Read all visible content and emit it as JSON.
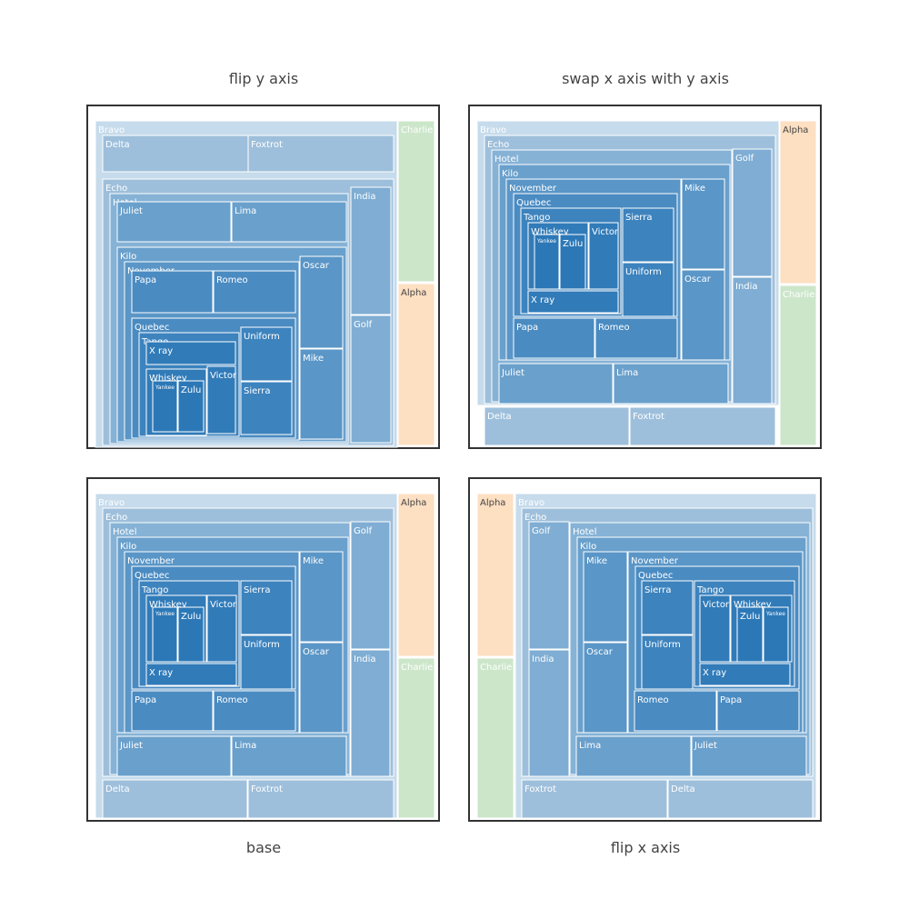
{
  "chart_data": [
    {
      "type": "treemap",
      "title": "flip y axis",
      "orientation": "flip-y",
      "tiling": "bottom-up",
      "nodes": [
        {
          "label": "Bravo",
          "parent": ""
        },
        {
          "label": "Delta",
          "parent": "Bravo"
        },
        {
          "label": "Foxtrot",
          "parent": "Bravo"
        },
        {
          "label": "Echo",
          "parent": "Bravo"
        },
        {
          "label": "Hotel",
          "parent": "Echo"
        },
        {
          "label": "India",
          "parent": "Echo"
        },
        {
          "label": "Golf",
          "parent": "Echo"
        },
        {
          "label": "Juliet",
          "parent": "Hotel"
        },
        {
          "label": "Lima",
          "parent": "Hotel"
        },
        {
          "label": "Kilo",
          "parent": "Hotel"
        },
        {
          "label": "November",
          "parent": "Kilo"
        },
        {
          "label": "Oscar",
          "parent": "Kilo"
        },
        {
          "label": "Mike",
          "parent": "Kilo"
        },
        {
          "label": "Papa",
          "parent": "November"
        },
        {
          "label": "Romeo",
          "parent": "November"
        },
        {
          "label": "Quebec",
          "parent": "November"
        },
        {
          "label": "Tango",
          "parent": "Quebec"
        },
        {
          "label": "Uniform",
          "parent": "Quebec"
        },
        {
          "label": "Sierra",
          "parent": "Quebec"
        },
        {
          "label": "X ray",
          "parent": "Tango"
        },
        {
          "label": "Whiskey",
          "parent": "Tango"
        },
        {
          "label": "Victor",
          "parent": "Tango"
        },
        {
          "label": "Yankee",
          "parent": "Whiskey"
        },
        {
          "label": "Zulu",
          "parent": "Whiskey"
        },
        {
          "label": "Charlie",
          "parent": ""
        },
        {
          "label": "Alpha",
          "parent": ""
        }
      ]
    },
    {
      "type": "treemap",
      "title": "swap x axis with y axis",
      "orientation": "swap-xy",
      "tiling": "transposed",
      "nodes": [
        {
          "label": "Bravo",
          "parent": ""
        },
        {
          "label": "Echo",
          "parent": "Bravo"
        },
        {
          "label": "Hotel",
          "parent": "Echo"
        },
        {
          "label": "Golf",
          "parent": "Echo"
        },
        {
          "label": "India",
          "parent": "Echo"
        },
        {
          "label": "Kilo",
          "parent": "Hotel"
        },
        {
          "label": "November",
          "parent": "Kilo"
        },
        {
          "label": "Mike",
          "parent": "Kilo"
        },
        {
          "label": "Oscar",
          "parent": "Kilo"
        },
        {
          "label": "Quebec",
          "parent": "November"
        },
        {
          "label": "Tango",
          "parent": "Quebec"
        },
        {
          "label": "Sierra",
          "parent": "Quebec"
        },
        {
          "label": "Uniform",
          "parent": "Quebec"
        },
        {
          "label": "Whiskey",
          "parent": "Tango"
        },
        {
          "label": "Victor",
          "parent": "Tango"
        },
        {
          "label": "Yankee",
          "parent": "Whiskey"
        },
        {
          "label": "Zulu",
          "parent": "Whiskey"
        },
        {
          "label": "X ray",
          "parent": "Tango"
        },
        {
          "label": "Papa",
          "parent": "November"
        },
        {
          "label": "Romeo",
          "parent": "November"
        },
        {
          "label": "Juliet",
          "parent": "Hotel"
        },
        {
          "label": "Lima",
          "parent": "Hotel"
        },
        {
          "label": "Delta",
          "parent": "Bravo"
        },
        {
          "label": "Foxtrot",
          "parent": "Bravo"
        },
        {
          "label": "Alpha",
          "parent": ""
        },
        {
          "label": "Charlie",
          "parent": ""
        }
      ]
    },
    {
      "type": "treemap",
      "title": "base",
      "orientation": "base",
      "tiling": "top-down",
      "nodes": [
        {
          "label": "Bravo",
          "parent": ""
        },
        {
          "label": "Echo",
          "parent": "Bravo"
        },
        {
          "label": "Hotel",
          "parent": "Echo"
        },
        {
          "label": "Golf",
          "parent": "Echo"
        },
        {
          "label": "India",
          "parent": "Echo"
        },
        {
          "label": "Kilo",
          "parent": "Hotel"
        },
        {
          "label": "November",
          "parent": "Kilo"
        },
        {
          "label": "Mike",
          "parent": "Kilo"
        },
        {
          "label": "Oscar",
          "parent": "Kilo"
        },
        {
          "label": "Quebec",
          "parent": "November"
        },
        {
          "label": "Tango",
          "parent": "Quebec"
        },
        {
          "label": "Sierra",
          "parent": "Quebec"
        },
        {
          "label": "Uniform",
          "parent": "Quebec"
        },
        {
          "label": "Whiskey",
          "parent": "Tango"
        },
        {
          "label": "Victor",
          "parent": "Tango"
        },
        {
          "label": "Yankee",
          "parent": "Whiskey"
        },
        {
          "label": "Zulu",
          "parent": "Whiskey"
        },
        {
          "label": "X ray",
          "parent": "Tango"
        },
        {
          "label": "Papa",
          "parent": "November"
        },
        {
          "label": "Romeo",
          "parent": "November"
        },
        {
          "label": "Juliet",
          "parent": "Hotel"
        },
        {
          "label": "Lima",
          "parent": "Hotel"
        },
        {
          "label": "Delta",
          "parent": "Bravo"
        },
        {
          "label": "Foxtrot",
          "parent": "Bravo"
        },
        {
          "label": "Alpha",
          "parent": ""
        },
        {
          "label": "Charlie",
          "parent": ""
        }
      ]
    },
    {
      "type": "treemap",
      "title": "flip x axis",
      "orientation": "flip-x",
      "tiling": "right-to-left",
      "nodes": [
        {
          "label": "Alpha",
          "parent": ""
        },
        {
          "label": "Charlie",
          "parent": ""
        },
        {
          "label": "Bravo",
          "parent": ""
        },
        {
          "label": "Echo",
          "parent": "Bravo"
        },
        {
          "label": "Golf",
          "parent": "Echo"
        },
        {
          "label": "India",
          "parent": "Echo"
        },
        {
          "label": "Hotel",
          "parent": "Echo"
        },
        {
          "label": "Kilo",
          "parent": "Hotel"
        },
        {
          "label": "Mike",
          "parent": "Kilo"
        },
        {
          "label": "Oscar",
          "parent": "Kilo"
        },
        {
          "label": "November",
          "parent": "Kilo"
        },
        {
          "label": "Quebec",
          "parent": "November"
        },
        {
          "label": "Sierra",
          "parent": "Quebec"
        },
        {
          "label": "Uniform",
          "parent": "Quebec"
        },
        {
          "label": "Tango",
          "parent": "Quebec"
        },
        {
          "label": "Victor",
          "parent": "Tango"
        },
        {
          "label": "Whiskey",
          "parent": "Tango"
        },
        {
          "label": "Zulu",
          "parent": "Whiskey"
        },
        {
          "label": "Yankee",
          "parent": "Whiskey"
        },
        {
          "label": "X ray",
          "parent": "Tango"
        },
        {
          "label": "Romeo",
          "parent": "November"
        },
        {
          "label": "Papa",
          "parent": "November"
        },
        {
          "label": "Lima",
          "parent": "Hotel"
        },
        {
          "label": "Juliet",
          "parent": "Hotel"
        },
        {
          "label": "Foxtrot",
          "parent": "Bravo"
        },
        {
          "label": "Delta",
          "parent": "Bravo"
        }
      ]
    }
  ],
  "colors": {
    "Bravo": "#c6dbeb",
    "Delta": "#9ebfdb",
    "Foxtrot": "#9ebfdb",
    "Echo": "#9ebfdb",
    "Hotel": "#86b2d6",
    "India": "#7fadd3",
    "Golf": "#7fadd3",
    "Juliet": "#6aa0cc",
    "Lima": "#6aa0cc",
    "Kilo": "#6aa0cc",
    "November": "#5a96c7",
    "Oscar": "#5a96c7",
    "Mike": "#5a96c7",
    "Papa": "#4a8bc2",
    "Romeo": "#4a8bc2",
    "Quebec": "#4a8bc2",
    "Tango": "#3d83be",
    "Uniform": "#3d83be",
    "Sierra": "#3d83be",
    "X ray": "#317bb9",
    "Whiskey": "#317bb9",
    "Victor": "#317bb9",
    "Yankee": "#2c78b7",
    "Zulu": "#2c78b7",
    "Charlie": "#cce6ca",
    "Alpha": "#fddfc2",
    "text_light": "#ffffff",
    "text_dark": "#444444",
    "frame": "#333333",
    "tile_border": "#ffffff"
  }
}
